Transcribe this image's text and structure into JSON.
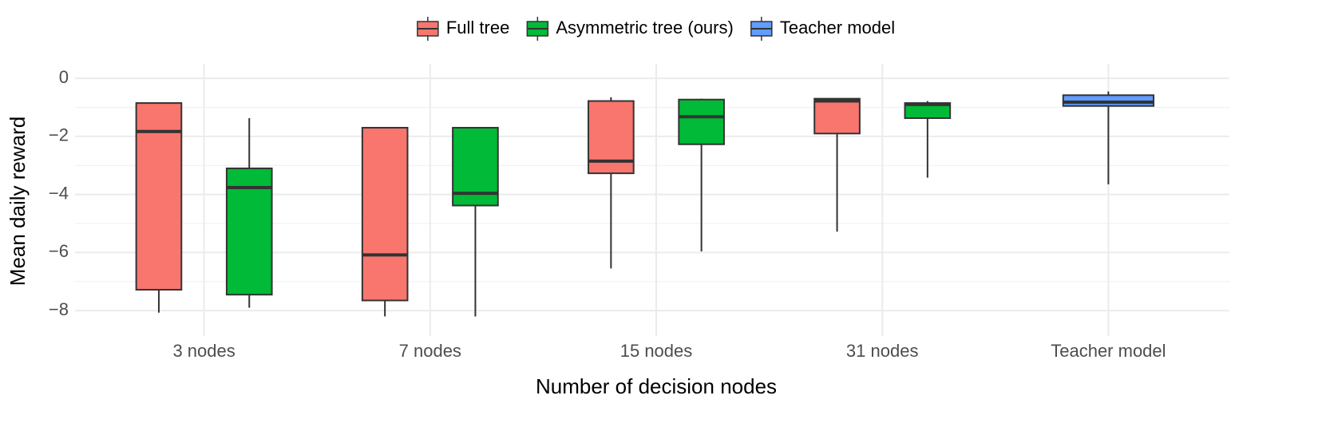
{
  "chart_data": {
    "type": "boxplot",
    "x_label": "Number of decision nodes",
    "y_label": "Mean daily reward",
    "categories": [
      "3 nodes",
      "7 nodes",
      "15 nodes",
      "31 nodes",
      "Teacher model"
    ],
    "series": [
      {
        "name": "Full tree",
        "color": "#F8766D",
        "values": [
          {
            "min": -8.07,
            "q1": -7.28,
            "median": -1.83,
            "q3": -0.85,
            "max": -0.85
          },
          {
            "min": -8.2,
            "q1": -7.65,
            "median": -6.08,
            "q3": -1.7,
            "max": -1.7
          },
          {
            "min": -6.55,
            "q1": -3.27,
            "median": -2.85,
            "q3": -0.78,
            "max": -0.65
          },
          {
            "min": -5.28,
            "q1": -1.9,
            "median": -0.78,
            "q3": -0.7,
            "max": -0.68
          },
          null
        ]
      },
      {
        "name": "Asymmetric tree (ours)",
        "color": "#00BA38",
        "values": [
          {
            "min": -7.9,
            "q1": -7.45,
            "median": -3.76,
            "q3": -3.1,
            "max": -1.37
          },
          {
            "min": -8.2,
            "q1": -4.38,
            "median": -3.96,
            "q3": -1.7,
            "max": -1.7
          },
          {
            "min": -5.96,
            "q1": -2.27,
            "median": -1.32,
            "q3": -0.73,
            "max": -0.7
          },
          {
            "min": -3.42,
            "q1": -1.37,
            "median": -0.9,
            "q3": -0.85,
            "max": -0.78
          },
          null
        ]
      },
      {
        "name": "Teacher model",
        "color": "#619CFF",
        "values": [
          null,
          null,
          null,
          null,
          {
            "min": -3.65,
            "q1": -0.95,
            "median": -0.82,
            "q3": -0.58,
            "max": -0.45
          }
        ]
      }
    ],
    "ylim": [
      -8.6,
      0.5
    ],
    "yticks": [
      {
        "value": -8,
        "label": "−8"
      },
      {
        "value": -6,
        "label": "−6"
      },
      {
        "value": -4,
        "label": "−4"
      },
      {
        "value": -2,
        "label": "−2"
      },
      0
    ],
    "minor_yticks": [
      -7,
      -5,
      -3,
      -1
    ],
    "grid": true,
    "legend_position": "top"
  }
}
